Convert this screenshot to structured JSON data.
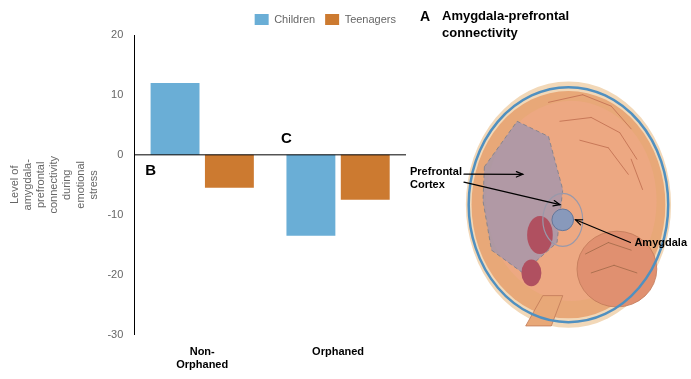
{
  "chart_data": {
    "type": "bar",
    "title": "Amygdala-prefrontal\nconnectivity",
    "categories": [
      "Non-\nOrphaned",
      "Orphaned"
    ],
    "series": [
      {
        "name": "Children",
        "color": "#6aaed6",
        "values": [
          12.0,
          -13.5
        ]
      },
      {
        "name": "Teenagers",
        "color": "#cc7a30",
        "values": [
          -5.5,
          -7.5
        ]
      }
    ],
    "ylabel": "Level of\namygdala-\nprefrontal\nconnectivity\nduring\nemotional\nstress",
    "ylim": [
      -30,
      20
    ],
    "yticks": [
      -30,
      -20,
      -10,
      0,
      10,
      20
    ],
    "grid": false,
    "legend": "upper right",
    "annotations": [
      "A",
      "B",
      "C",
      "Prefrontal\nCortex",
      "Amygdala"
    ]
  }
}
